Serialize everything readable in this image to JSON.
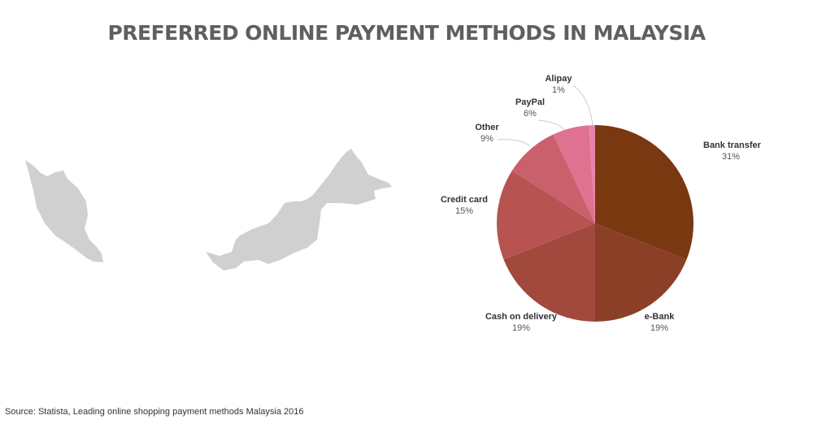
{
  "title": "PREFERRED ONLINE PAYMENT METHODS IN MALAYSIA",
  "source": "Source: Statista, Leading online shopping payment methods Malaysia 2016",
  "map": {
    "fill": "#d0d0d0"
  },
  "chart_data": {
    "type": "pie",
    "title": "PREFERRED ONLINE PAYMENT METHODS IN MALAYSIA",
    "start": "top",
    "direction": "clockwise",
    "slices": [
      {
        "label": "Bank transfer",
        "value": 31,
        "display": "31%",
        "color": "#7a3811"
      },
      {
        "label": "e-Bank",
        "value": 19,
        "display": "19%",
        "color": "#8c3f27"
      },
      {
        "label": "Cash on delivery",
        "value": 19,
        "display": "19%",
        "color": "#a1493c"
      },
      {
        "label": "Credit card",
        "value": 15,
        "display": "15%",
        "color": "#b75452"
      },
      {
        "label": "Other",
        "value": 9,
        "display": "9%",
        "color": "#c9606c"
      },
      {
        "label": "PayPal",
        "value": 6,
        "display": "6%",
        "color": "#de7290"
      },
      {
        "label": "Alipay",
        "value": 1,
        "display": "1%",
        "color": "#e884a9"
      }
    ]
  }
}
